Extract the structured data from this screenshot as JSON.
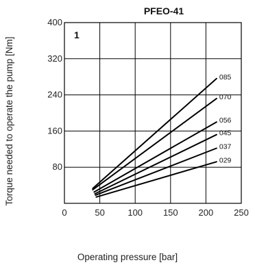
{
  "chart_data": {
    "type": "line",
    "title": "PFEO-41",
    "panel_label": "1",
    "xlabel": "Operating pressure [bar]",
    "ylabel": "Torque needed to operate the pump [Nm]",
    "xlim": [
      0,
      250
    ],
    "ylim": [
      0,
      400
    ],
    "x_ticks": [
      "0",
      "50",
      "100",
      "150",
      "200",
      "250"
    ],
    "y_ticks": [
      "80",
      "160",
      "240",
      "320",
      "400"
    ],
    "grid": true,
    "series": [
      {
        "name": "085",
        "x": [
          40,
          215
        ],
        "y": [
          33,
          276
        ]
      },
      {
        "name": "070",
        "x": [
          40,
          215
        ],
        "y": [
          30,
          232
        ]
      },
      {
        "name": "056",
        "x": [
          42,
          215
        ],
        "y": [
          25,
          180
        ]
      },
      {
        "name": "045",
        "x": [
          43,
          215
        ],
        "y": [
          21,
          152
        ]
      },
      {
        "name": "037",
        "x": [
          44,
          215
        ],
        "y": [
          18,
          122
        ]
      },
      {
        "name": "029",
        "x": [
          45,
          215
        ],
        "y": [
          14,
          92
        ]
      }
    ]
  }
}
